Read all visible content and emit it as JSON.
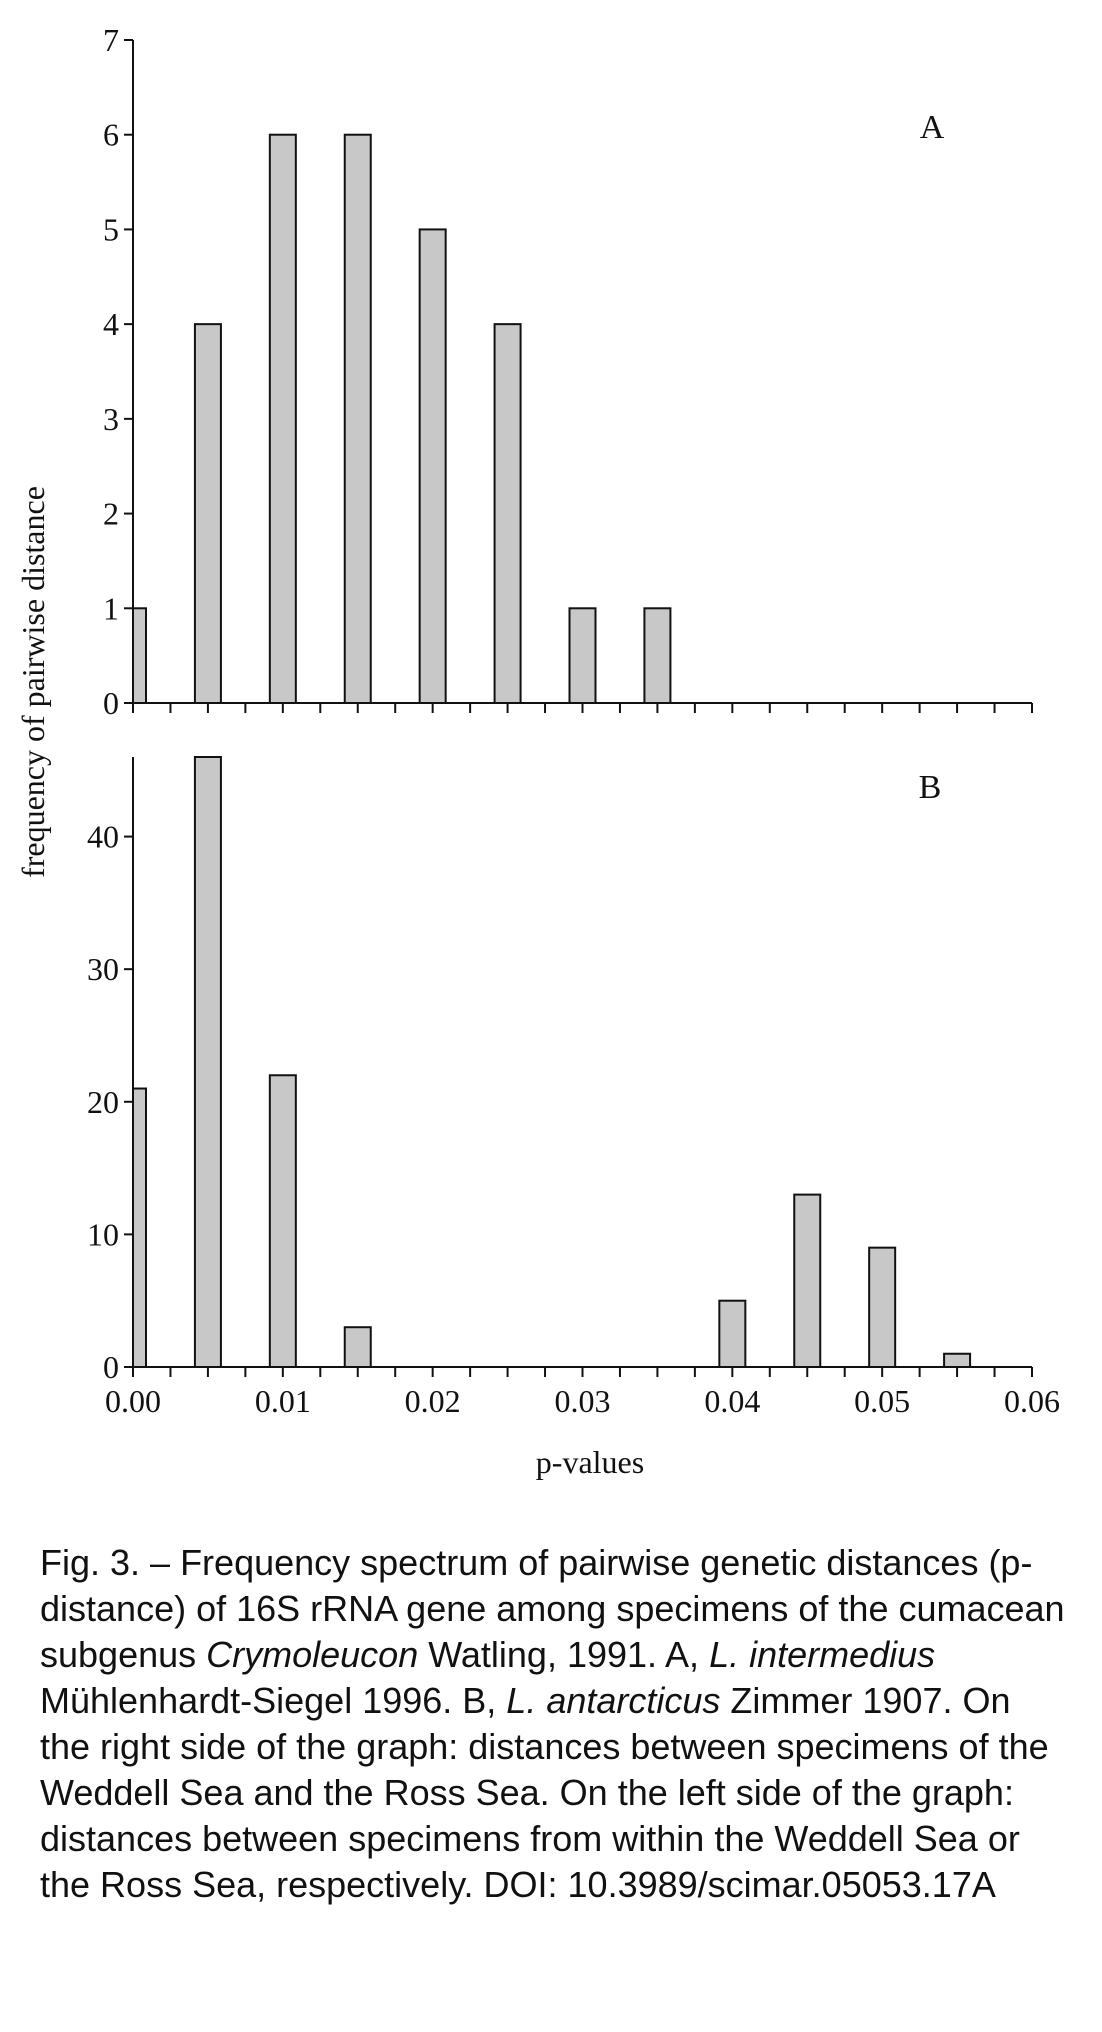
{
  "chart_data": [
    {
      "type": "bar",
      "panel_label": "A",
      "x": [
        0.0,
        0.005,
        0.01,
        0.015,
        0.02,
        0.025,
        0.03,
        0.035
      ],
      "values": [
        1,
        4,
        6,
        6,
        5,
        4,
        1,
        1
      ],
      "xlim": [
        0,
        0.06
      ],
      "ylim": [
        0,
        7
      ],
      "yticks": [
        "0",
        "1",
        "2",
        "3",
        "4",
        "5",
        "6",
        "7"
      ],
      "bar_color": "#c8c8c8"
    },
    {
      "type": "bar",
      "panel_label": "B",
      "x": [
        0.0,
        0.005,
        0.01,
        0.015,
        0.04,
        0.045,
        0.05,
        0.055
      ],
      "values": [
        21,
        46,
        22,
        3,
        5,
        13,
        9,
        1
      ],
      "xlim": [
        0,
        0.06
      ],
      "ylim": [
        0,
        46
      ],
      "yticks": [
        "0",
        "10",
        "20",
        "30",
        "40"
      ],
      "xticks": [
        "0.00",
        "0.01",
        "0.02",
        "0.03",
        "0.04",
        "0.05",
        "0.06"
      ],
      "bar_color": "#c8c8c8"
    }
  ],
  "axes": {
    "ylabel": "frequency of pairwise distance",
    "xlabel": "p-values"
  },
  "caption": {
    "p1": "Fig. 3. – Frequency spectrum of pairwise genetic distances (p-distance) of 16S rRNA gene among specimens of the cumacean subgenus ",
    "i1": "Crymoleucon",
    "p2": " Watling, 1991. A, ",
    "i2": "L. intermedius",
    "p3": " Mühlenhardt-Siegel 1996. B, ",
    "i3": "L. antarcticus",
    "p4": " Zimmer 1907. On the right side of the graph: distances between specimens of the Weddell Sea and the Ross Sea. On the left side of the graph: distances between specimens from within the Weddell Sea or the Ross Sea, respectively. DOI: 10.3989/scimar.05053.17A"
  }
}
